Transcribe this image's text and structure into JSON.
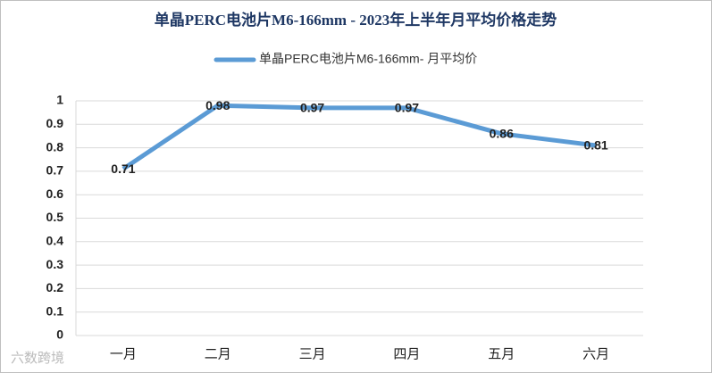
{
  "chart_data": {
    "type": "line",
    "title": "单晶PERC电池片M6-166mm - 2023年上半年月平均价格走势",
    "categories": [
      "一月",
      "二月",
      "三月",
      "四月",
      "五月",
      "六月"
    ],
    "series": [
      {
        "name": "单晶PERC电池片M6-166mm- 月平均价",
        "color": "#5b9bd5",
        "values": [
          0.71,
          0.98,
          0.97,
          0.97,
          0.86,
          0.81
        ]
      }
    ],
    "ylim": [
      0,
      1
    ],
    "yticks": [
      0,
      0.1,
      0.2,
      0.3,
      0.4,
      0.5,
      0.6,
      0.7,
      0.8,
      0.9,
      1
    ],
    "grid": true,
    "legend": "top",
    "watermark": "六数跨境"
  }
}
